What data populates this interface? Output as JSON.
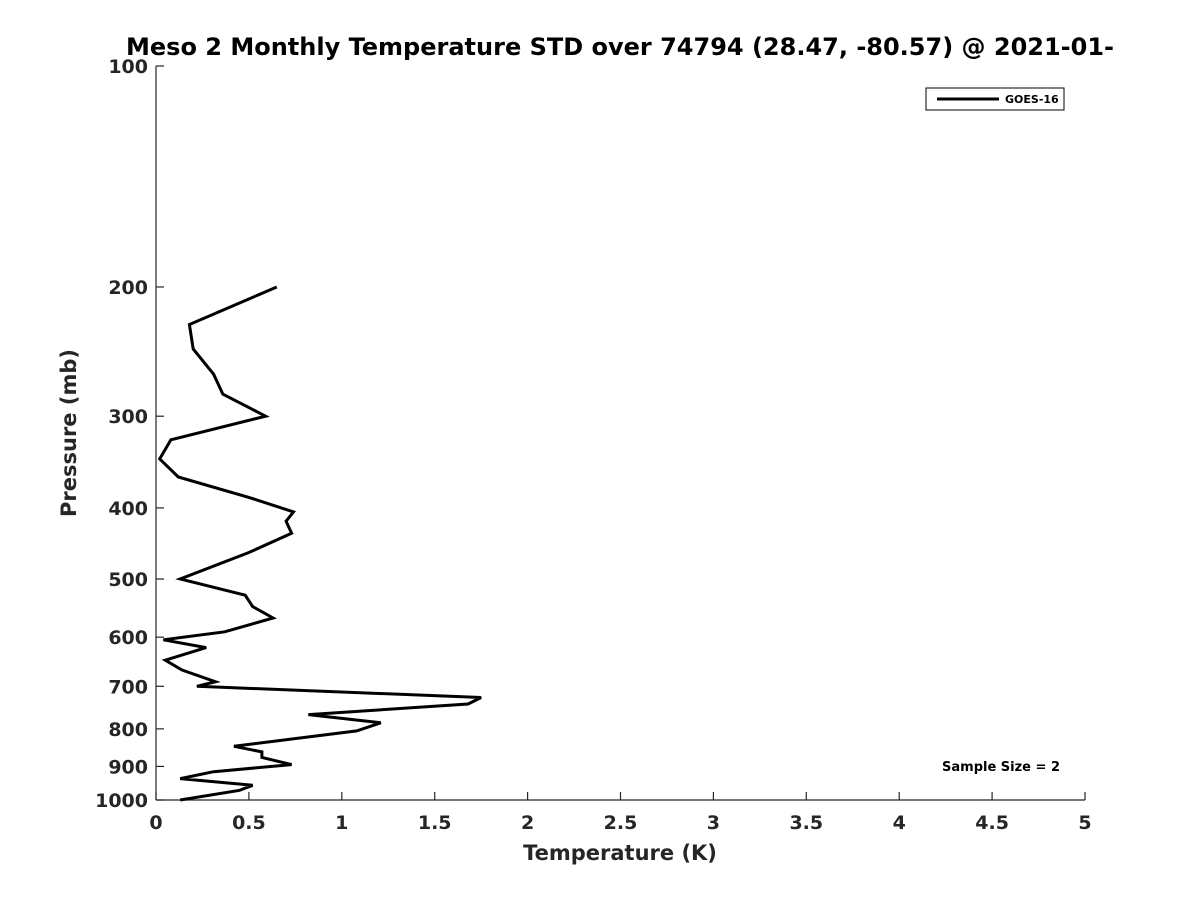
{
  "chart_data": {
    "type": "line",
    "title": "Meso 2 Monthly Temperature STD over 74794 (28.47, -80.57) @ 2021-01-",
    "xlabel": "Temperature (K)",
    "ylabel": "Pressure (mb)",
    "xlim": [
      0,
      5
    ],
    "ylim": [
      100,
      1000
    ],
    "yscale": "log",
    "y_reversed": true,
    "grid": false,
    "legend_position": "top-right",
    "xticks": [
      "0",
      "0.5",
      "1",
      "1.5",
      "2",
      "2.5",
      "3",
      "3.5",
      "4",
      "4.5",
      "5"
    ],
    "yticks": [
      "100",
      "200",
      "300",
      "400",
      "500",
      "600",
      "700",
      "800",
      "900",
      "1000"
    ],
    "series": [
      {
        "name": "GOES-16",
        "color": "#000000",
        "points": [
          [
            0.65,
            200
          ],
          [
            0.18,
            225
          ],
          [
            0.2,
            243
          ],
          [
            0.31,
            263
          ],
          [
            0.36,
            280
          ],
          [
            0.59,
            300
          ],
          [
            0.08,
            323
          ],
          [
            0.02,
            343
          ],
          [
            0.12,
            363
          ],
          [
            0.5,
            387
          ],
          [
            0.74,
            405
          ],
          [
            0.7,
            417
          ],
          [
            0.73,
            433
          ],
          [
            0.5,
            460
          ],
          [
            0.13,
            500
          ],
          [
            0.48,
            526
          ],
          [
            0.52,
            545
          ],
          [
            0.63,
            565
          ],
          [
            0.37,
            590
          ],
          [
            0.04,
            605
          ],
          [
            0.27,
            620
          ],
          [
            0.05,
            645
          ],
          [
            0.14,
            665
          ],
          [
            0.32,
            690
          ],
          [
            0.22,
            700
          ],
          [
            1.75,
            725
          ],
          [
            1.68,
            740
          ],
          [
            0.82,
            765
          ],
          [
            1.21,
            785
          ],
          [
            1.08,
            805
          ],
          [
            0.42,
            845
          ],
          [
            0.57,
            860
          ],
          [
            0.57,
            875
          ],
          [
            0.73,
            895
          ],
          [
            0.31,
            915
          ],
          [
            0.13,
            935
          ],
          [
            0.52,
            955
          ],
          [
            0.45,
            970
          ],
          [
            0.13,
            1000
          ]
        ]
      }
    ],
    "annotations": [
      {
        "text": "Sample Size = 2",
        "position": "bottom-right"
      }
    ]
  }
}
